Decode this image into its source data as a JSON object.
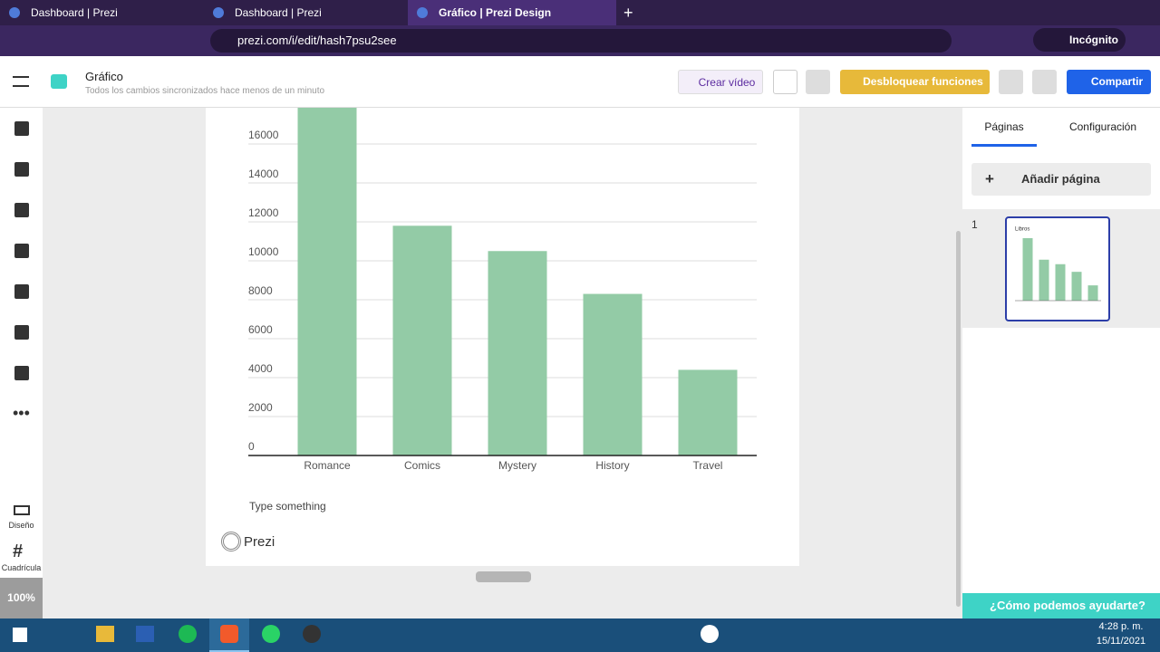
{
  "browser": {
    "tabs": [
      "Dashboard | Prezi",
      "Dashboard | Prezi",
      "Gráfico | Prezi Design"
    ],
    "url": "prezi.com/i/edit/hash7psu2see",
    "profile": "Incógnito"
  },
  "header": {
    "title": "Gráfico",
    "status": "Todos los cambios sincronizados hace menos de un minuto",
    "buttons": [
      "Crear vídeo",
      "Desbloquear funciones",
      "Compartir"
    ]
  },
  "sidebar": {
    "items": [
      "Diseño",
      "Cuadrícula"
    ],
    "zoom": "100%"
  },
  "canvas": {
    "text": "Type something",
    "logo": "Prezi"
  },
  "chart_data": {
    "type": "bar",
    "categories": [
      "Romance",
      "Comics",
      "Mystery",
      "History",
      "Travel"
    ],
    "values": [
      18000,
      11800,
      10500,
      8300,
      4400
    ],
    "color": "#93cba6",
    "ylim": [
      0,
      18000
    ],
    "yticks": [
      0,
      2000,
      4000,
      6000,
      8000,
      10000,
      12000,
      14000,
      16000
    ],
    "grid": true
  },
  "panel": {
    "tabs": [
      "Páginas",
      "Configuración"
    ],
    "add_page": "Añadir página",
    "pages": [
      {
        "number": "1",
        "title": "Libros"
      }
    ]
  },
  "help": "¿Cómo podemos ayudarte?",
  "taskbar": {
    "time": "4:28 p. m.",
    "date": "15/11/2021"
  }
}
